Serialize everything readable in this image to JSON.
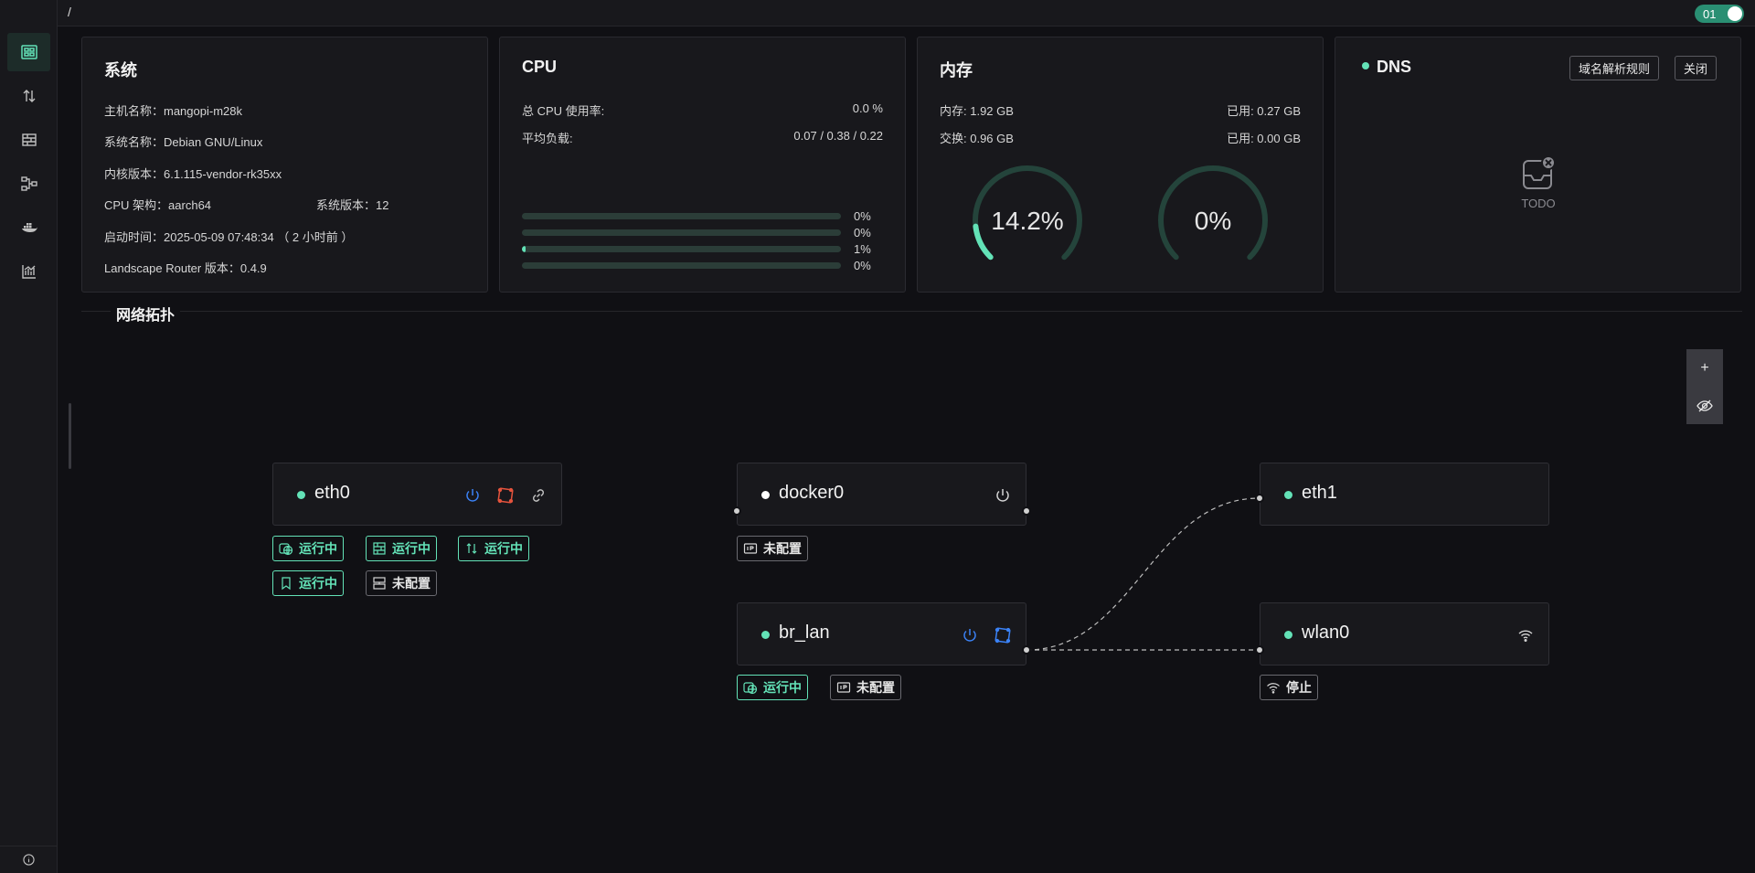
{
  "header": {
    "breadcrumb": "/",
    "toggle_label": "01"
  },
  "sidebar": {
    "items": [
      {
        "name": "dashboard-icon",
        "active": true
      },
      {
        "name": "traffic-icon"
      },
      {
        "name": "firewall-icon"
      },
      {
        "name": "topology-icon"
      },
      {
        "name": "docker-icon"
      },
      {
        "name": "chart-icon"
      }
    ]
  },
  "system": {
    "title": "系统",
    "hostname": "主机名称：mangopi-m28k",
    "os": "系统名称：Debian GNU/Linux",
    "kernel": "内核版本：6.1.115-vendor-rk35xx",
    "arch": "CPU 架构：aarch64",
    "os_version": "系统版本：12",
    "boot": "启动时间：2025-05-09 07:48:34 （ 2 小时前 ）",
    "version": "Landscape Router 版本：0.4.9"
  },
  "cpu": {
    "title": "CPU",
    "usage_label": "总 CPU 使用率:",
    "usage_value": "0.0 %",
    "load_label": "平均负载:",
    "load_value": "0.07 / 0.38 / 0.22",
    "cores": [
      {
        "label": "0%",
        "value": 0
      },
      {
        "label": "0%",
        "value": 0
      },
      {
        "label": "1%",
        "value": 1
      },
      {
        "label": "0%",
        "value": 0
      }
    ]
  },
  "memory": {
    "title": "内存",
    "mem_label": "内存: 1.92 GB",
    "mem_used": "已用: 0.27 GB",
    "swap_label": "交换: 0.96 GB",
    "swap_used": "已用: 0.00 GB",
    "mem_percent_label": "14.2%",
    "mem_percent": 14.2,
    "swap_percent_label": "0%",
    "swap_percent": 0
  },
  "dns": {
    "title": "DNS",
    "rules_button": "域名解析规则",
    "close_button": "关闭",
    "empty_text": "TODO"
  },
  "topology": {
    "title": "网络拓扑",
    "zoom_in": "+",
    "nodes": {
      "eth0": {
        "name": "eth0",
        "tags": [
          "运行中",
          "运行中",
          "运行中",
          "运行中",
          "未配置"
        ]
      },
      "docker0": {
        "name": "docker0",
        "tags": [
          "未配置"
        ]
      },
      "eth1": {
        "name": "eth1"
      },
      "br_lan": {
        "name": "br_lan",
        "tags": [
          "运行中",
          "未配置"
        ]
      },
      "wlan0": {
        "name": "wlan0",
        "tags": [
          "停止"
        ]
      }
    }
  },
  "colors": {
    "accent": "#63e2b7",
    "danger": "#e5533d",
    "link": "#3b82f6"
  }
}
